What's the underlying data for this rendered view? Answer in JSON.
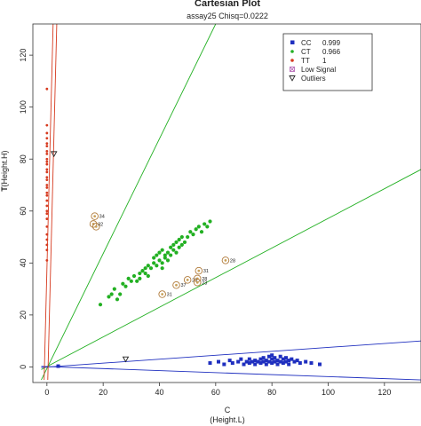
{
  "chart_data": {
    "type": "scatter",
    "title": "Cartesian Plot",
    "subtitle": "assay25 Chisq=0.0222",
    "xlabel": "C",
    "xlabel_sub": "(Height.L)",
    "ylabel": "T",
    "ylabel_sub": "(Height.H)",
    "xlim": [
      -5,
      133
    ],
    "ylim": [
      -6,
      132
    ],
    "xticks": [
      "0",
      "20",
      "40",
      "60",
      "80",
      "100",
      "120"
    ],
    "xtick_values": [
      0,
      20,
      40,
      60,
      80,
      100,
      120
    ],
    "yticks": [
      "0",
      "20",
      "40",
      "60",
      "80",
      "100",
      "120"
    ],
    "ytick_values": [
      0,
      20,
      40,
      60,
      80,
      100,
      120
    ],
    "grid": false,
    "legend_position": "top-right",
    "legend": [
      {
        "label": "CC",
        "value": "0.999",
        "color": "#1f2fbf",
        "marker": "square"
      },
      {
        "label": "CT",
        "value": "0.966",
        "color": "#22b022",
        "marker": "dot"
      },
      {
        "label": "TT",
        "value": "1",
        "color": "#d63a1f",
        "marker": "dot"
      },
      {
        "label": "Low Signal",
        "value": "",
        "color": "#b05ab0",
        "marker": "crossed-square"
      },
      {
        "label": "Outliers",
        "value": "",
        "color": "#222222",
        "marker": "triangle-down"
      }
    ],
    "boundary_lines": [
      {
        "color": "#22b022",
        "x": [
          -2,
          60
        ],
        "y": [
          -5,
          132
        ]
      },
      {
        "color": "#22b022",
        "x": [
          -2,
          133
        ],
        "y": [
          -1,
          76
        ]
      },
      {
        "color": "#1f2fbf",
        "x": [
          -2,
          133
        ],
        "y": [
          -0.2,
          10
        ]
      },
      {
        "color": "#1f2fbf",
        "x": [
          -2,
          133
        ],
        "y": [
          0.2,
          -5
        ]
      },
      {
        "color": "#d63a1f",
        "x": [
          -1,
          2.2
        ],
        "y": [
          -5,
          132
        ]
      },
      {
        "color": "#d63a1f",
        "x": [
          0.3,
          3.5
        ],
        "y": [
          -5,
          132
        ]
      }
    ],
    "series": [
      {
        "name": "CC",
        "color": "#1f2fbf",
        "marker": "square",
        "x": [
          58,
          61,
          63,
          65,
          66,
          68,
          69,
          70,
          71,
          72,
          72,
          73,
          74,
          74,
          75,
          76,
          76,
          77,
          77,
          78,
          78,
          79,
          79,
          80,
          80,
          80,
          81,
          81,
          82,
          82,
          83,
          83,
          84,
          84,
          85,
          85,
          86,
          86,
          87,
          88,
          89,
          90,
          92,
          94,
          97,
          4
        ],
        "y": [
          1.5,
          2,
          1,
          2.5,
          1.5,
          2,
          3,
          1,
          2,
          1.5,
          3,
          2,
          1,
          2.5,
          2,
          3,
          1.5,
          2,
          3.5,
          1,
          2.5,
          2,
          4,
          1.5,
          3,
          4.5,
          2,
          3.5,
          1,
          2.5,
          2,
          4,
          1.5,
          3,
          2,
          3.5,
          2.5,
          1,
          3,
          2,
          2.5,
          1.5,
          2,
          1.5,
          1,
          0.3
        ]
      },
      {
        "name": "CT",
        "color": "#22b022",
        "marker": "dot",
        "x": [
          19,
          22,
          23,
          24,
          25,
          26,
          27,
          28,
          29,
          30,
          31,
          32,
          33,
          34,
          35,
          35,
          36,
          37,
          38,
          38,
          39,
          39,
          40,
          40,
          41,
          41,
          42,
          42,
          43,
          43,
          44,
          44,
          45,
          45,
          46,
          46,
          47,
          47,
          48,
          48,
          49,
          50,
          51,
          52,
          53,
          54,
          55,
          56,
          57,
          58,
          41,
          36,
          33
        ],
        "y": [
          24,
          27,
          28,
          30,
          26,
          28,
          32,
          31,
          34,
          33,
          35,
          33,
          36,
          37,
          36,
          38,
          39,
          38,
          40,
          42,
          39,
          43,
          41,
          44,
          40,
          45,
          42,
          43,
          44,
          41,
          46,
          43,
          47,
          45,
          48,
          44,
          46,
          49,
          47,
          50,
          48,
          50,
          52,
          51,
          53,
          54,
          52,
          55,
          54,
          56,
          38,
          35,
          34
        ]
      },
      {
        "name": "TT",
        "color": "#d63a1f",
        "marker": "dot",
        "x": [
          0,
          0,
          0,
          0,
          0,
          0,
          0,
          0,
          0,
          0,
          0,
          0,
          0,
          0,
          0,
          0,
          0,
          0,
          0,
          0,
          0,
          0,
          0,
          0,
          0,
          0,
          0,
          0,
          0,
          0
        ],
        "y": [
          41,
          45,
          47,
          49,
          51,
          54,
          57,
          59,
          60,
          62,
          64,
          66,
          67,
          69,
          70,
          72,
          73,
          75,
          76,
          78,
          79,
          80,
          82,
          83,
          85,
          86,
          88,
          90,
          93,
          107
        ]
      }
    ],
    "low_signal_points": [
      {
        "x": 17,
        "y": 58,
        "label": "34"
      },
      {
        "x": 16.5,
        "y": 55,
        "label": "32"
      },
      {
        "x": 17.5,
        "y": 54,
        "label": ""
      },
      {
        "x": 41,
        "y": 28,
        "label": "31"
      },
      {
        "x": 46,
        "y": 31.5,
        "label": "37"
      },
      {
        "x": 50,
        "y": 33.5,
        "label": "25"
      },
      {
        "x": 53.5,
        "y": 34,
        "label": "28"
      },
      {
        "x": 54,
        "y": 37,
        "label": "31"
      },
      {
        "x": 53.5,
        "y": 32.5,
        "label": "23"
      },
      {
        "x": 63.5,
        "y": 41,
        "label": "28"
      }
    ],
    "outlier_points": [
      {
        "x": 28,
        "y": 3
      },
      {
        "x": 2.5,
        "y": 82
      }
    ]
  }
}
